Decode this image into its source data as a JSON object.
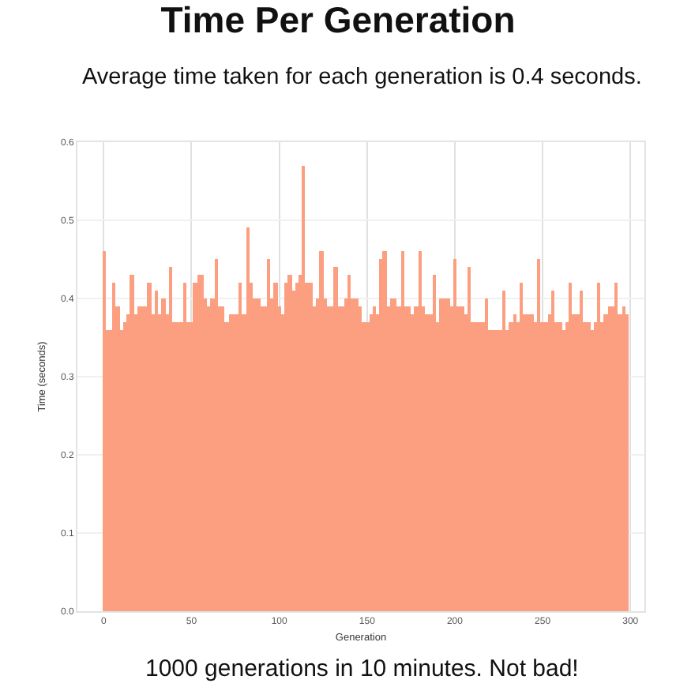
{
  "chart_data": {
    "type": "bar",
    "title": "Time Per Generation",
    "subtitle": "Average time taken for each generation is 0.4 seconds.",
    "xlabel": "Generation",
    "ylabel": "Time (seconds)",
    "annotations": [
      "1000 generations in 10 minutes. Not bad!"
    ],
    "x": [
      0,
      2,
      4,
      6,
      8,
      10,
      12,
      14,
      16,
      18,
      20,
      22,
      24,
      26,
      28,
      30,
      32,
      34,
      36,
      38,
      40,
      42,
      44,
      46,
      48,
      50,
      52,
      54,
      56,
      58,
      60,
      62,
      64,
      66,
      68,
      70,
      72,
      74,
      76,
      78,
      80,
      82,
      84,
      86,
      88,
      90,
      92,
      94,
      96,
      98,
      100,
      102,
      104,
      106,
      108,
      110,
      112,
      114,
      116,
      118,
      120,
      122,
      124,
      126,
      128,
      130,
      132,
      134,
      136,
      138,
      140,
      142,
      144,
      146,
      148,
      150,
      152,
      154,
      156,
      158,
      160,
      162,
      164,
      166,
      168,
      170,
      172,
      174,
      176,
      178,
      180,
      182,
      184,
      186,
      188,
      190,
      192,
      194,
      196,
      198,
      200,
      202,
      204,
      206,
      208,
      210,
      212,
      214,
      216,
      218,
      220,
      222,
      224,
      226,
      228,
      230,
      232,
      234,
      236,
      238,
      240,
      242,
      244,
      246,
      248,
      250,
      252,
      254,
      256,
      258,
      260,
      262,
      264,
      266,
      268,
      270,
      272,
      274,
      276,
      278,
      280,
      282,
      284,
      286,
      288,
      290,
      292,
      294,
      296,
      298
    ],
    "series": [
      {
        "color": "#fc9f80",
        "values": [
          0.46,
          0.36,
          0.36,
          0.42,
          0.39,
          0.36,
          0.37,
          0.38,
          0.43,
          0.38,
          0.39,
          0.39,
          0.39,
          0.42,
          0.38,
          0.41,
          0.38,
          0.4,
          0.38,
          0.44,
          0.37,
          0.37,
          0.37,
          0.42,
          0.37,
          0.37,
          0.42,
          0.43,
          0.43,
          0.4,
          0.39,
          0.4,
          0.45,
          0.39,
          0.39,
          0.37,
          0.38,
          0.38,
          0.38,
          0.42,
          0.38,
          0.49,
          0.42,
          0.4,
          0.4,
          0.39,
          0.39,
          0.45,
          0.4,
          0.42,
          0.39,
          0.38,
          0.42,
          0.43,
          0.41,
          0.42,
          0.43,
          0.57,
          0.42,
          0.42,
          0.39,
          0.4,
          0.46,
          0.4,
          0.39,
          0.39,
          0.44,
          0.39,
          0.39,
          0.4,
          0.43,
          0.4,
          0.4,
          0.39,
          0.37,
          0.37,
          0.38,
          0.39,
          0.38,
          0.45,
          0.46,
          0.39,
          0.4,
          0.4,
          0.39,
          0.46,
          0.39,
          0.39,
          0.38,
          0.39,
          0.46,
          0.39,
          0.38,
          0.38,
          0.43,
          0.37,
          0.4,
          0.4,
          0.4,
          0.39,
          0.45,
          0.39,
          0.39,
          0.38,
          0.44,
          0.37,
          0.37,
          0.37,
          0.37,
          0.4,
          0.36,
          0.36,
          0.36,
          0.36,
          0.41,
          0.36,
          0.37,
          0.38,
          0.37,
          0.42,
          0.38,
          0.38,
          0.38,
          0.37,
          0.45,
          0.37,
          0.37,
          0.38,
          0.41,
          0.37,
          0.37,
          0.36,
          0.37,
          0.42,
          0.38,
          0.38,
          0.41,
          0.37,
          0.37,
          0.36,
          0.37,
          0.42,
          0.37,
          0.38,
          0.39,
          0.39,
          0.42,
          0.38,
          0.39,
          0.38
        ]
      }
    ],
    "xlim": [
      -15,
      308
    ],
    "xticks": [
      0,
      50,
      100,
      150,
      200,
      250,
      300
    ],
    "ylim": [
      0,
      0.6
    ],
    "yticks": [
      {
        "value": 0,
        "label": "0.0"
      },
      0.1,
      0.2,
      0.3,
      0.4,
      0.5,
      0.6
    ],
    "grid": true
  }
}
